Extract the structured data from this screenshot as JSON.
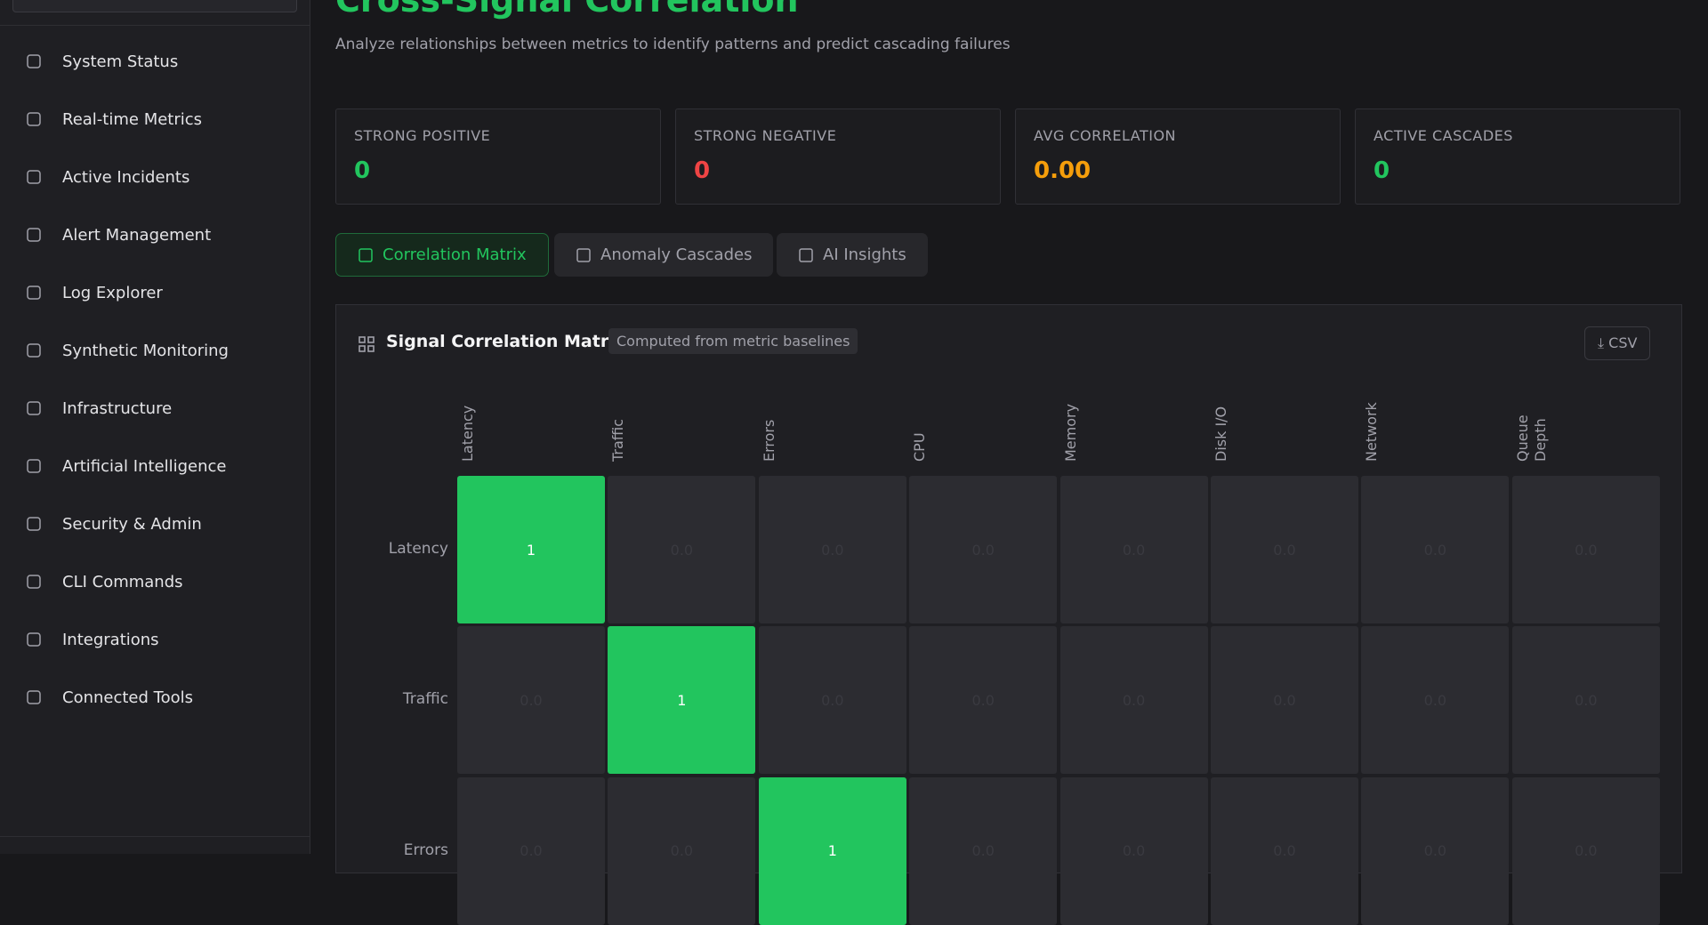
{
  "sidebar": {
    "items": [
      "System Status",
      "Real-time Metrics",
      "Active Incidents",
      "Alert Management",
      "Log Explorer",
      "Synthetic Monitoring",
      "Infrastructure",
      "Artificial Intelligence",
      "Security & Admin",
      "CLI Commands",
      "Integrations",
      "Connected Tools"
    ]
  },
  "header": {
    "title": "Cross-Signal Correlation",
    "subtitle": "Analyze relationships between metrics to identify patterns and predict cascading failures"
  },
  "stats": [
    {
      "label": "STRONG POSITIVE",
      "value": "0"
    },
    {
      "label": "STRONG NEGATIVE",
      "value": "0"
    },
    {
      "label": "AVG CORRELATION",
      "value": "0.00"
    },
    {
      "label": "ACTIVE CASCADES",
      "value": "0"
    }
  ],
  "tabs": [
    "Correlation Matrix",
    "Anomaly Cascades",
    "AI Insights"
  ],
  "matrix": {
    "title": "Signal Correlation Matrix",
    "badge": "Computed from metric baselines",
    "export": "CSV",
    "columns": [
      "Latency",
      "Traffic",
      "Errors",
      "CPU",
      "Memory",
      "Disk I/O",
      "Network",
      "Queue Depth"
    ],
    "rows": [
      {
        "label": "Latency",
        "cells": [
          "1",
          "0.0",
          "0.0",
          "0.0",
          "0.0",
          "0.0",
          "0.0",
          "0.0"
        ]
      },
      {
        "label": "Traffic",
        "cells": [
          "0.0",
          "1",
          "0.0",
          "0.0",
          "0.0",
          "0.0",
          "0.0",
          "0.0"
        ]
      },
      {
        "label": "Errors",
        "cells": [
          "0.0",
          "0.0",
          "1",
          "0.0",
          "0.0",
          "0.0",
          "0.0",
          "0.0"
        ]
      }
    ]
  }
}
